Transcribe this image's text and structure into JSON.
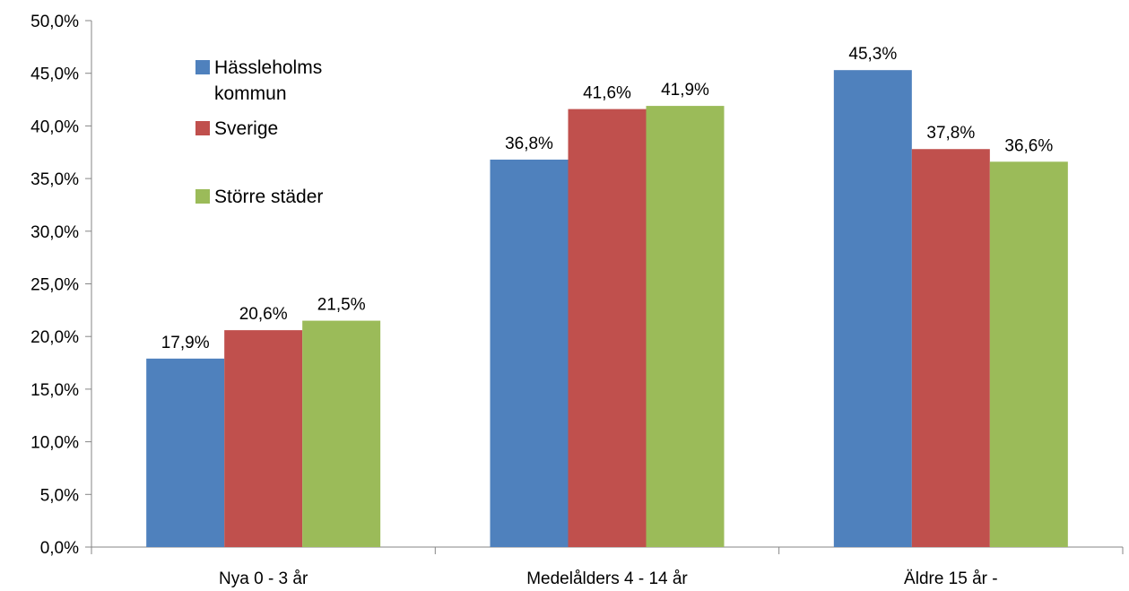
{
  "chart_data": {
    "type": "bar",
    "categories": [
      "Nya 0 - 3 år",
      "Medelålders 4 - 14 år",
      "Äldre 15 år -"
    ],
    "series": [
      {
        "name": "Hässleholms kommun",
        "name_lines": [
          "Hässleholms",
          "kommun"
        ],
        "color": "#4F81BD",
        "values": [
          17.9,
          36.8,
          45.3
        ],
        "labels": [
          "17,9%",
          "36,8%",
          "45,3%"
        ]
      },
      {
        "name": "Sverige",
        "name_lines": [
          "Sverige"
        ],
        "color": "#C0504D",
        "values": [
          20.6,
          41.6,
          37.8
        ],
        "labels": [
          "20,6%",
          "41,6%",
          "37,8%"
        ]
      },
      {
        "name": "Större städer",
        "name_lines": [
          "Större städer"
        ],
        "color": "#9BBB59",
        "values": [
          21.5,
          41.9,
          36.6
        ],
        "labels": [
          "21,5%",
          "41,9%",
          "36,6%"
        ]
      }
    ],
    "y_ticks": [
      0,
      5,
      10,
      15,
      20,
      25,
      30,
      35,
      40,
      45,
      50
    ],
    "y_tick_labels": [
      "0,0%",
      "5,0%",
      "10,0%",
      "15,0%",
      "20,0%",
      "25,0%",
      "30,0%",
      "35,0%",
      "40,0%",
      "45,0%",
      "50,0%"
    ],
    "ylim": [
      0,
      50
    ],
    "grid": false,
    "legend_position": "top-left"
  }
}
